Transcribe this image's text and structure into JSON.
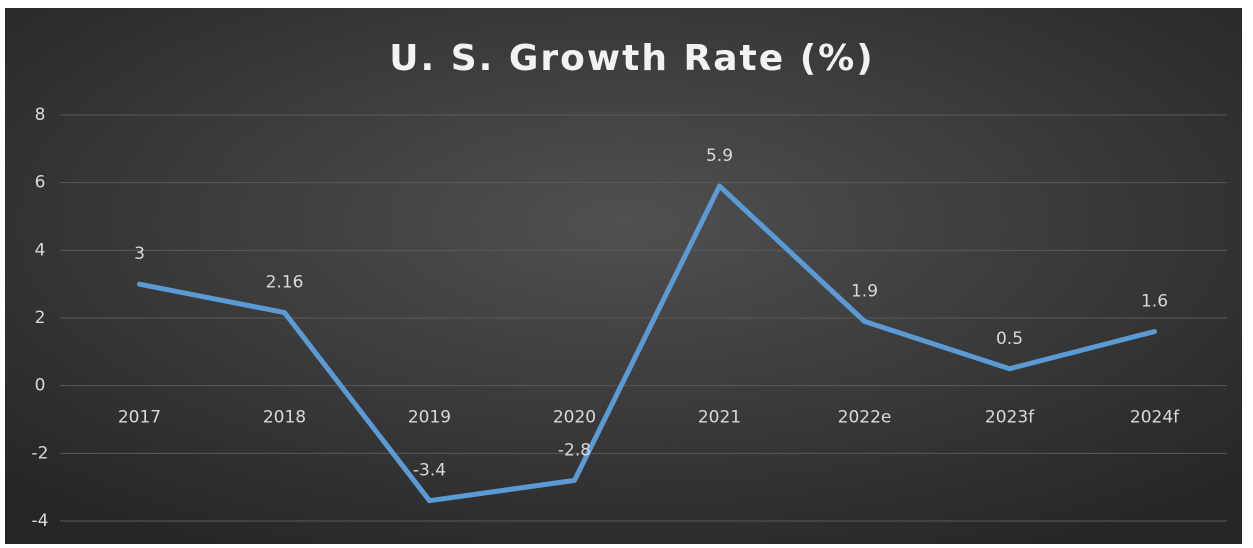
{
  "chart_data": {
    "type": "line",
    "title": "U. S. Growth Rate (%)",
    "categories": [
      "2017",
      "2018",
      "2019",
      "2020",
      "2021",
      "2022e",
      "2023f",
      "2024f"
    ],
    "series": [
      {
        "name": "Growth Rate",
        "color": "#5b9bd5",
        "values": [
          3,
          2.16,
          -3.4,
          -2.8,
          5.9,
          1.9,
          0.5,
          1.6
        ]
      }
    ],
    "ylim": [
      -4,
      8
    ],
    "yticks": [
      -4,
      -2,
      0,
      2,
      4,
      6,
      8
    ],
    "grid": true,
    "data_labels": true
  }
}
